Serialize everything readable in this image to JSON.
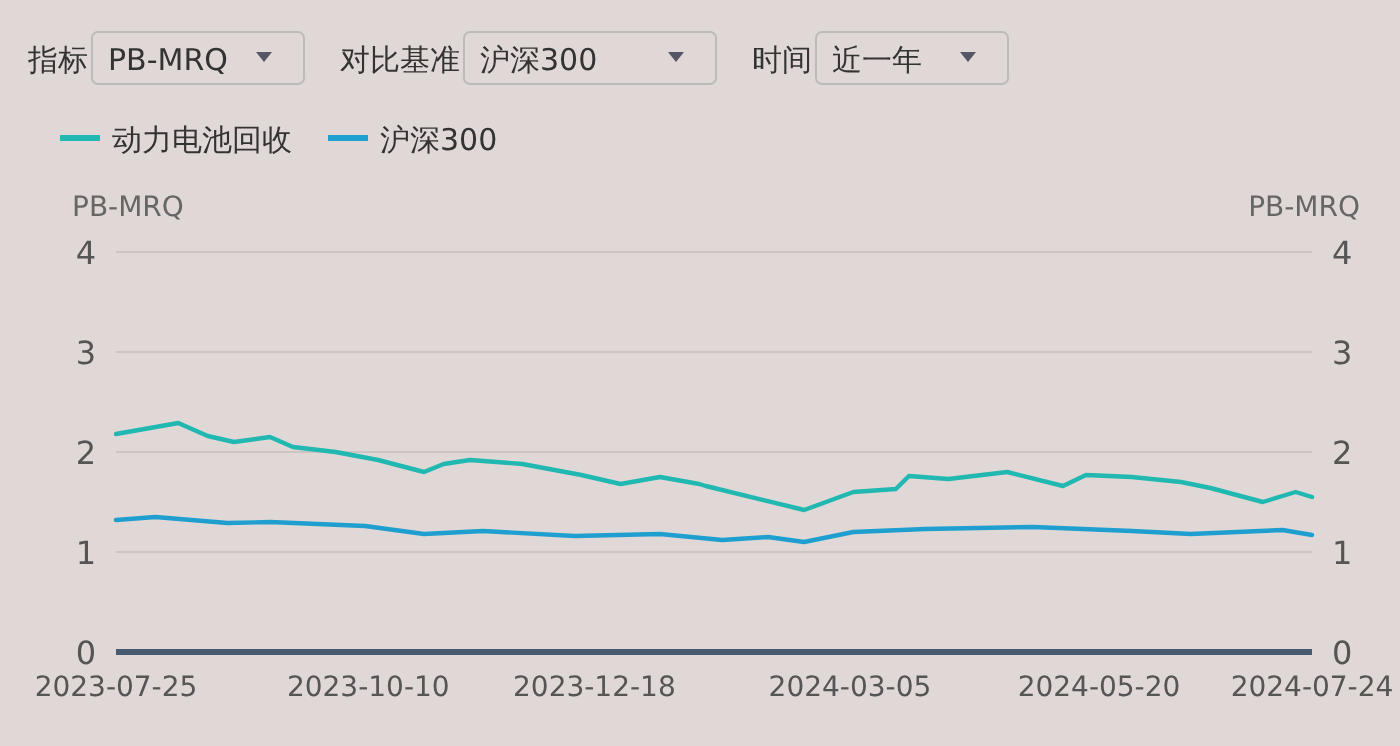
{
  "chart_data": {
    "type": "line",
    "ylabel": "PB-MRQ",
    "y2label": "PB-MRQ",
    "annotations": [
      "指标",
      "PB-MRQ",
      "对比基准",
      "沪深300",
      "时间",
      "近一年"
    ],
    "xlim": [
      "2023-07-25",
      "2024-07-24"
    ],
    "xticks": [
      "2023-07-25",
      "2023-10-10",
      "2023-12-18",
      "2024-03-05",
      "2024-05-20",
      "2024-07-24"
    ],
    "ylim": [
      0,
      4
    ],
    "yticks": [
      0,
      1,
      2,
      3,
      4
    ],
    "y2lim": [
      0,
      4
    ],
    "y2ticks": [
      0,
      1,
      2,
      3,
      4
    ],
    "grid": "y",
    "legend": "top left",
    "line_style": "solid",
    "series": [
      {
        "name": "动力电池回收",
        "color": "#20b8b0",
        "x": [
          "2023-07-25",
          "2023-08-13",
          "2023-08-22",
          "2023-08-30",
          "2023-09-10",
          "2023-09-17",
          "2023-09-30",
          "2023-10-13",
          "2023-10-27",
          "2023-11-02",
          "2023-11-10",
          "2023-11-26",
          "2023-12-14",
          "2023-12-26",
          "2024-01-07",
          "2024-01-19",
          "2024-01-21",
          "2024-02-20",
          "2024-03-06",
          "2024-03-19",
          "2024-03-23",
          "2024-04-04",
          "2024-04-22",
          "2024-05-09",
          "2024-05-16",
          "2024-05-30",
          "2024-06-14",
          "2024-06-23",
          "2024-07-09",
          "2024-07-19",
          "2024-07-24"
        ],
        "values": [
          2.18,
          2.29,
          2.16,
          2.1,
          2.15,
          2.05,
          2.0,
          1.92,
          1.8,
          1.88,
          1.92,
          1.88,
          1.77,
          1.68,
          1.75,
          1.68,
          1.66,
          1.42,
          1.6,
          1.63,
          1.76,
          1.73,
          1.8,
          1.66,
          1.77,
          1.75,
          1.7,
          1.64,
          1.5,
          1.6,
          1.55
        ]
      },
      {
        "name": "沪深300",
        "color": "#1f9fd0",
        "x": [
          "2023-07-25",
          "2023-08-06",
          "2023-08-28",
          "2023-09-10",
          "2023-10-09",
          "2023-10-27",
          "2023-11-14",
          "2023-12-12",
          "2024-01-07",
          "2024-01-26",
          "2024-02-09",
          "2024-02-20",
          "2024-03-06",
          "2024-03-28",
          "2024-04-30",
          "2024-05-30",
          "2024-06-17",
          "2024-07-15",
          "2024-07-24"
        ],
        "values": [
          1.32,
          1.35,
          1.29,
          1.3,
          1.26,
          1.18,
          1.21,
          1.16,
          1.18,
          1.12,
          1.15,
          1.1,
          1.2,
          1.23,
          1.25,
          1.21,
          1.18,
          1.22,
          1.17
        ]
      }
    ]
  }
}
